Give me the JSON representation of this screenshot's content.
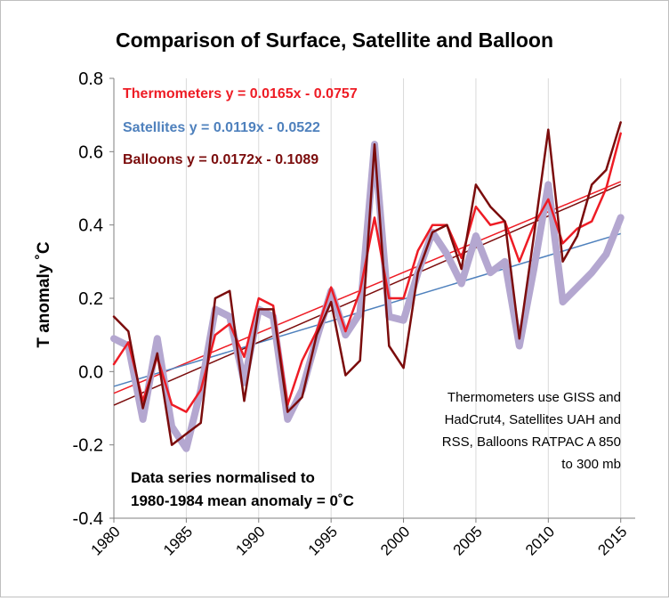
{
  "chart_data": {
    "type": "line",
    "title": "Comparison of Surface, Satellite and Balloon",
    "xlabel": "",
    "ylabel": "T anomaly ˚C",
    "xlim": [
      1980,
      2016
    ],
    "ylim": [
      -0.4,
      0.8
    ],
    "yticks": [
      -0.4,
      -0.2,
      0.0,
      0.2,
      0.4,
      0.6,
      0.8
    ],
    "ytick_labels": [
      "-0.4",
      "-0.2",
      "0.0",
      "0.2",
      "0.4",
      "0.6",
      "0.8"
    ],
    "xticks": [
      1980,
      1985,
      1990,
      1995,
      2000,
      2005,
      2010,
      2015
    ],
    "xtick_labels": [
      "1980",
      "1985",
      "1990",
      "1995",
      "2000",
      "2005",
      "2010",
      "2015"
    ],
    "grid": "vertical",
    "colors": {
      "thermometers": "#ee1c25",
      "satellites": "#b4a7d0",
      "balloons": "#7b0c0c",
      "satellites_trend": "#4f81bd",
      "frame": "#bfbfbf",
      "grid": "#d9d9d9"
    },
    "x": [
      1980,
      1981,
      1982,
      1983,
      1984,
      1985,
      1986,
      1987,
      1988,
      1989,
      1990,
      1991,
      1992,
      1993,
      1994,
      1995,
      1996,
      1997,
      1998,
      1999,
      2000,
      2001,
      2002,
      2003,
      2004,
      2005,
      2006,
      2007,
      2008,
      2009,
      2010,
      2011,
      2012,
      2013,
      2014,
      2015
    ],
    "series": [
      {
        "name": "Satellites",
        "key": "satellites",
        "values": [
          0.09,
          0.07,
          -0.13,
          0.09,
          -0.15,
          -0.21,
          -0.05,
          0.17,
          0.15,
          -0.03,
          0.17,
          0.15,
          -0.13,
          -0.05,
          0.09,
          0.22,
          0.1,
          0.16,
          0.62,
          0.15,
          0.14,
          0.27,
          0.38,
          0.32,
          0.24,
          0.37,
          0.27,
          0.3,
          0.07,
          0.28,
          0.51,
          0.19,
          0.23,
          0.27,
          0.32,
          0.42
        ]
      },
      {
        "name": "Thermometers",
        "key": "thermometers",
        "values": [
          0.02,
          0.08,
          -0.08,
          0.04,
          -0.09,
          -0.11,
          -0.05,
          0.1,
          0.13,
          0.04,
          0.2,
          0.18,
          -0.09,
          0.03,
          0.11,
          0.23,
          0.11,
          0.22,
          0.42,
          0.2,
          0.2,
          0.33,
          0.4,
          0.4,
          0.31,
          0.45,
          0.4,
          0.41,
          0.3,
          0.4,
          0.47,
          0.35,
          0.39,
          0.41,
          0.5,
          0.65
        ]
      },
      {
        "name": "Balloons",
        "key": "balloons",
        "values": [
          0.15,
          0.11,
          -0.1,
          0.05,
          -0.2,
          -0.17,
          -0.14,
          0.2,
          0.22,
          -0.08,
          0.17,
          0.17,
          -0.11,
          -0.07,
          0.1,
          0.19,
          -0.01,
          0.03,
          0.62,
          0.07,
          0.01,
          0.27,
          0.38,
          0.4,
          0.28,
          0.51,
          0.45,
          0.41,
          0.09,
          0.37,
          0.66,
          0.3,
          0.37,
          0.51,
          0.55,
          0.68
        ]
      }
    ],
    "trendlines": [
      {
        "name": "Thermometers",
        "key": "thermometers",
        "slope": 0.0165,
        "intercept": -0.0757,
        "color_key": "thermometers"
      },
      {
        "name": "Satellites",
        "key": "satellites",
        "slope": 0.0119,
        "intercept": -0.0522,
        "color_key": "satellites_trend"
      },
      {
        "name": "Balloons",
        "key": "balloons",
        "slope": 0.0172,
        "intercept": -0.1089,
        "color_key": "balloons"
      }
    ],
    "annotations": {
      "eq_thermometers": "Thermometers y = 0.0165x - 0.0757",
      "eq_satellites": "Satellites y = 0.0119x - 0.0522",
      "eq_balloons": "Balloons y = 0.0172x - 0.1089",
      "sources": [
        "Thermometers use GISS and",
        "HadCrut4, Satellites UAH and",
        "RSS, Balloons RATPAC A 850",
        "to 300 mb"
      ],
      "normalised": [
        "Data series normalised to",
        "1980-1984 mean anomaly = 0˚C"
      ]
    }
  }
}
